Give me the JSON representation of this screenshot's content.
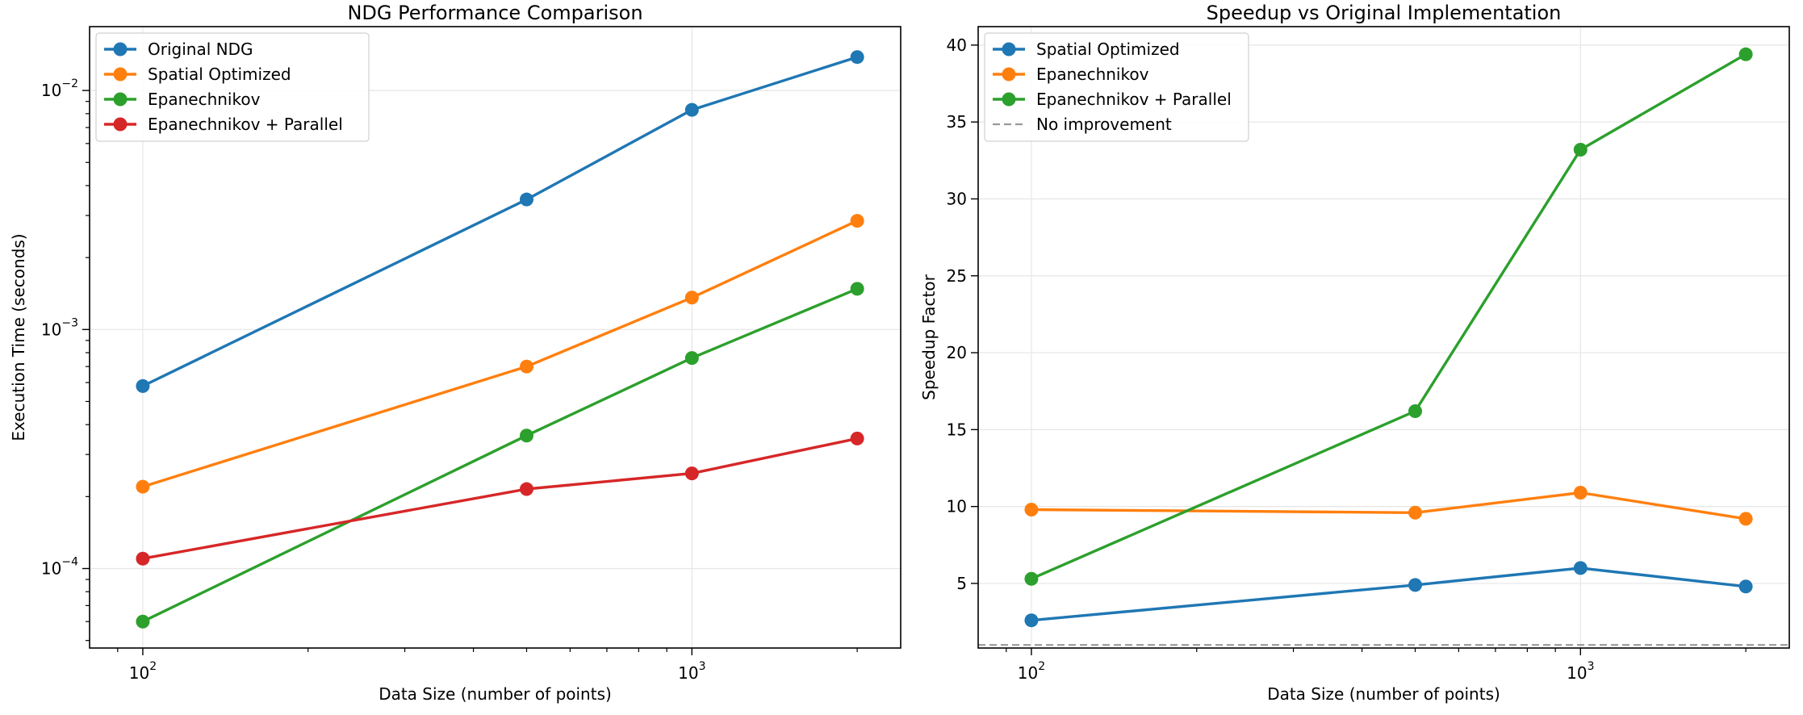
{
  "chart_data": [
    {
      "type": "line",
      "title": "NDG Performance Comparison",
      "xlabel": "Data Size (number of points)",
      "ylabel": "Execution Time (seconds)",
      "x_scale": "log",
      "y_scale": "log",
      "xlim": [
        80,
        2400
      ],
      "ylim": [
        4.65e-05,
        0.0185
      ],
      "grid": true,
      "legend": "top-left",
      "x_ticks": [
        {
          "value": 100,
          "mant": "10",
          "exp": "2"
        },
        {
          "value": 1000,
          "mant": "10",
          "exp": "3"
        }
      ],
      "y_ticks": [
        {
          "value": 0.0001,
          "mant": "10",
          "exp": "−4"
        },
        {
          "value": 0.001,
          "mant": "10",
          "exp": "−3"
        },
        {
          "value": 0.01,
          "mant": "10",
          "exp": "−2"
        }
      ],
      "x": [
        100,
        500,
        1000,
        2000
      ],
      "series": [
        {
          "name": "Original NDG",
          "color": "#1f77b4",
          "values": [
            0.00058,
            0.0035,
            0.0083,
            0.0138
          ]
        },
        {
          "name": "Spatial Optimized",
          "color": "#ff7f0e",
          "values": [
            0.00022,
            0.0007,
            0.00136,
            0.00285
          ]
        },
        {
          "name": "Epanechnikov",
          "color": "#2ca02c",
          "values": [
            6e-05,
            0.00036,
            0.00076,
            0.00148
          ]
        },
        {
          "name": "Epanechnikov + Parallel",
          "color": "#d62728",
          "values": [
            0.00011,
            0.000215,
            0.00025,
            0.00035
          ]
        }
      ]
    },
    {
      "type": "line",
      "title": "Speedup vs Original Implementation",
      "xlabel": "Data Size (number of points)",
      "ylabel": "Speedup Factor",
      "x_scale": "log",
      "y_scale": "linear",
      "xlim": [
        80,
        2400
      ],
      "ylim": [
        0.8,
        41.2
      ],
      "grid": true,
      "legend": "top-left",
      "x_ticks": [
        {
          "value": 100,
          "mant": "10",
          "exp": "2"
        },
        {
          "value": 1000,
          "mant": "10",
          "exp": "3"
        }
      ],
      "y_ticks": [
        {
          "value": 5,
          "label": "5"
        },
        {
          "value": 10,
          "label": "10"
        },
        {
          "value": 15,
          "label": "15"
        },
        {
          "value": 20,
          "label": "20"
        },
        {
          "value": 25,
          "label": "25"
        },
        {
          "value": 30,
          "label": "30"
        },
        {
          "value": 35,
          "label": "35"
        },
        {
          "value": 40,
          "label": "40"
        }
      ],
      "x": [
        100,
        500,
        1000,
        2000
      ],
      "series": [
        {
          "name": "Spatial Optimized",
          "color": "#1f77b4",
          "values": [
            2.6,
            4.9,
            6.0,
            4.8
          ]
        },
        {
          "name": "Epanechnikov",
          "color": "#ff7f0e",
          "values": [
            9.8,
            9.6,
            10.9,
            9.2
          ]
        },
        {
          "name": "Epanechnikov + Parallel",
          "color": "#2ca02c",
          "values": [
            5.3,
            16.2,
            33.2,
            39.4
          ]
        }
      ],
      "reference_lines": [
        {
          "name": "No improvement",
          "y": 1,
          "color": "#999999",
          "style": "dashed"
        }
      ]
    }
  ]
}
